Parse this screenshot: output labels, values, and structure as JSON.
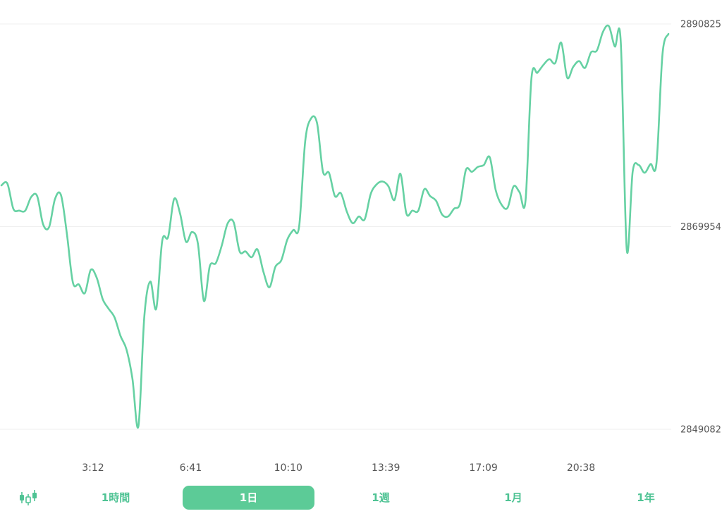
{
  "colors": {
    "line": "#66d1a3",
    "accent": "#5ccb97",
    "accent_text": "#4fc394",
    "axis_text": "#555555",
    "grid": "#efefef"
  },
  "chart_data": {
    "type": "line",
    "y_ticks": [
      "2890825",
      "2869954",
      "2849082"
    ],
    "ylim": [
      2849082,
      2890825
    ],
    "x_ticks": [
      "3:12",
      "6:41",
      "10:10",
      "13:39",
      "17:09",
      "20:38"
    ],
    "grid": "horizontal",
    "series": [
      {
        "values": [
          2874200,
          2874400,
          2871800,
          2871600,
          2871600,
          2873000,
          2873100,
          2870200,
          2869900,
          2872800,
          2873200,
          2869200,
          2864200,
          2864000,
          2863100,
          2865500,
          2864700,
          2862500,
          2861500,
          2860600,
          2858700,
          2857300,
          2854300,
          2849400,
          2860700,
          2864300,
          2861500,
          2868500,
          2868900,
          2872800,
          2871300,
          2868400,
          2869400,
          2868200,
          2862300,
          2865900,
          2866200,
          2868000,
          2870300,
          2870400,
          2867400,
          2867400,
          2866800,
          2867600,
          2865300,
          2863700,
          2865800,
          2866500,
          2868600,
          2869600,
          2870000,
          2878700,
          2881100,
          2880600,
          2875600,
          2875500,
          2873100,
          2873400,
          2871500,
          2870300,
          2871000,
          2870700,
          2873300,
          2874300,
          2874600,
          2874100,
          2872700,
          2875400,
          2871300,
          2871600,
          2871600,
          2873800,
          2873100,
          2872600,
          2871200,
          2871000,
          2871800,
          2872300,
          2875800,
          2875600,
          2876100,
          2876300,
          2877100,
          2873700,
          2872200,
          2871900,
          2874100,
          2873500,
          2872600,
          2885200,
          2885800,
          2886600,
          2887200,
          2886800,
          2888900,
          2885300,
          2886400,
          2887000,
          2886300,
          2887900,
          2888100,
          2890000,
          2890600,
          2888500,
          2889000,
          2867600,
          2875600,
          2876300,
          2875500,
          2876400,
          2876500,
          2887700,
          2889800
        ]
      }
    ]
  },
  "toolbar": {
    "candlestick_icon": "candlestick-chart-icon",
    "ranges": [
      {
        "label": "1時間",
        "active": false
      },
      {
        "label": "1日",
        "active": true
      },
      {
        "label": "1週",
        "active": false
      },
      {
        "label": "1月",
        "active": false
      },
      {
        "label": "1年",
        "active": false
      }
    ]
  }
}
